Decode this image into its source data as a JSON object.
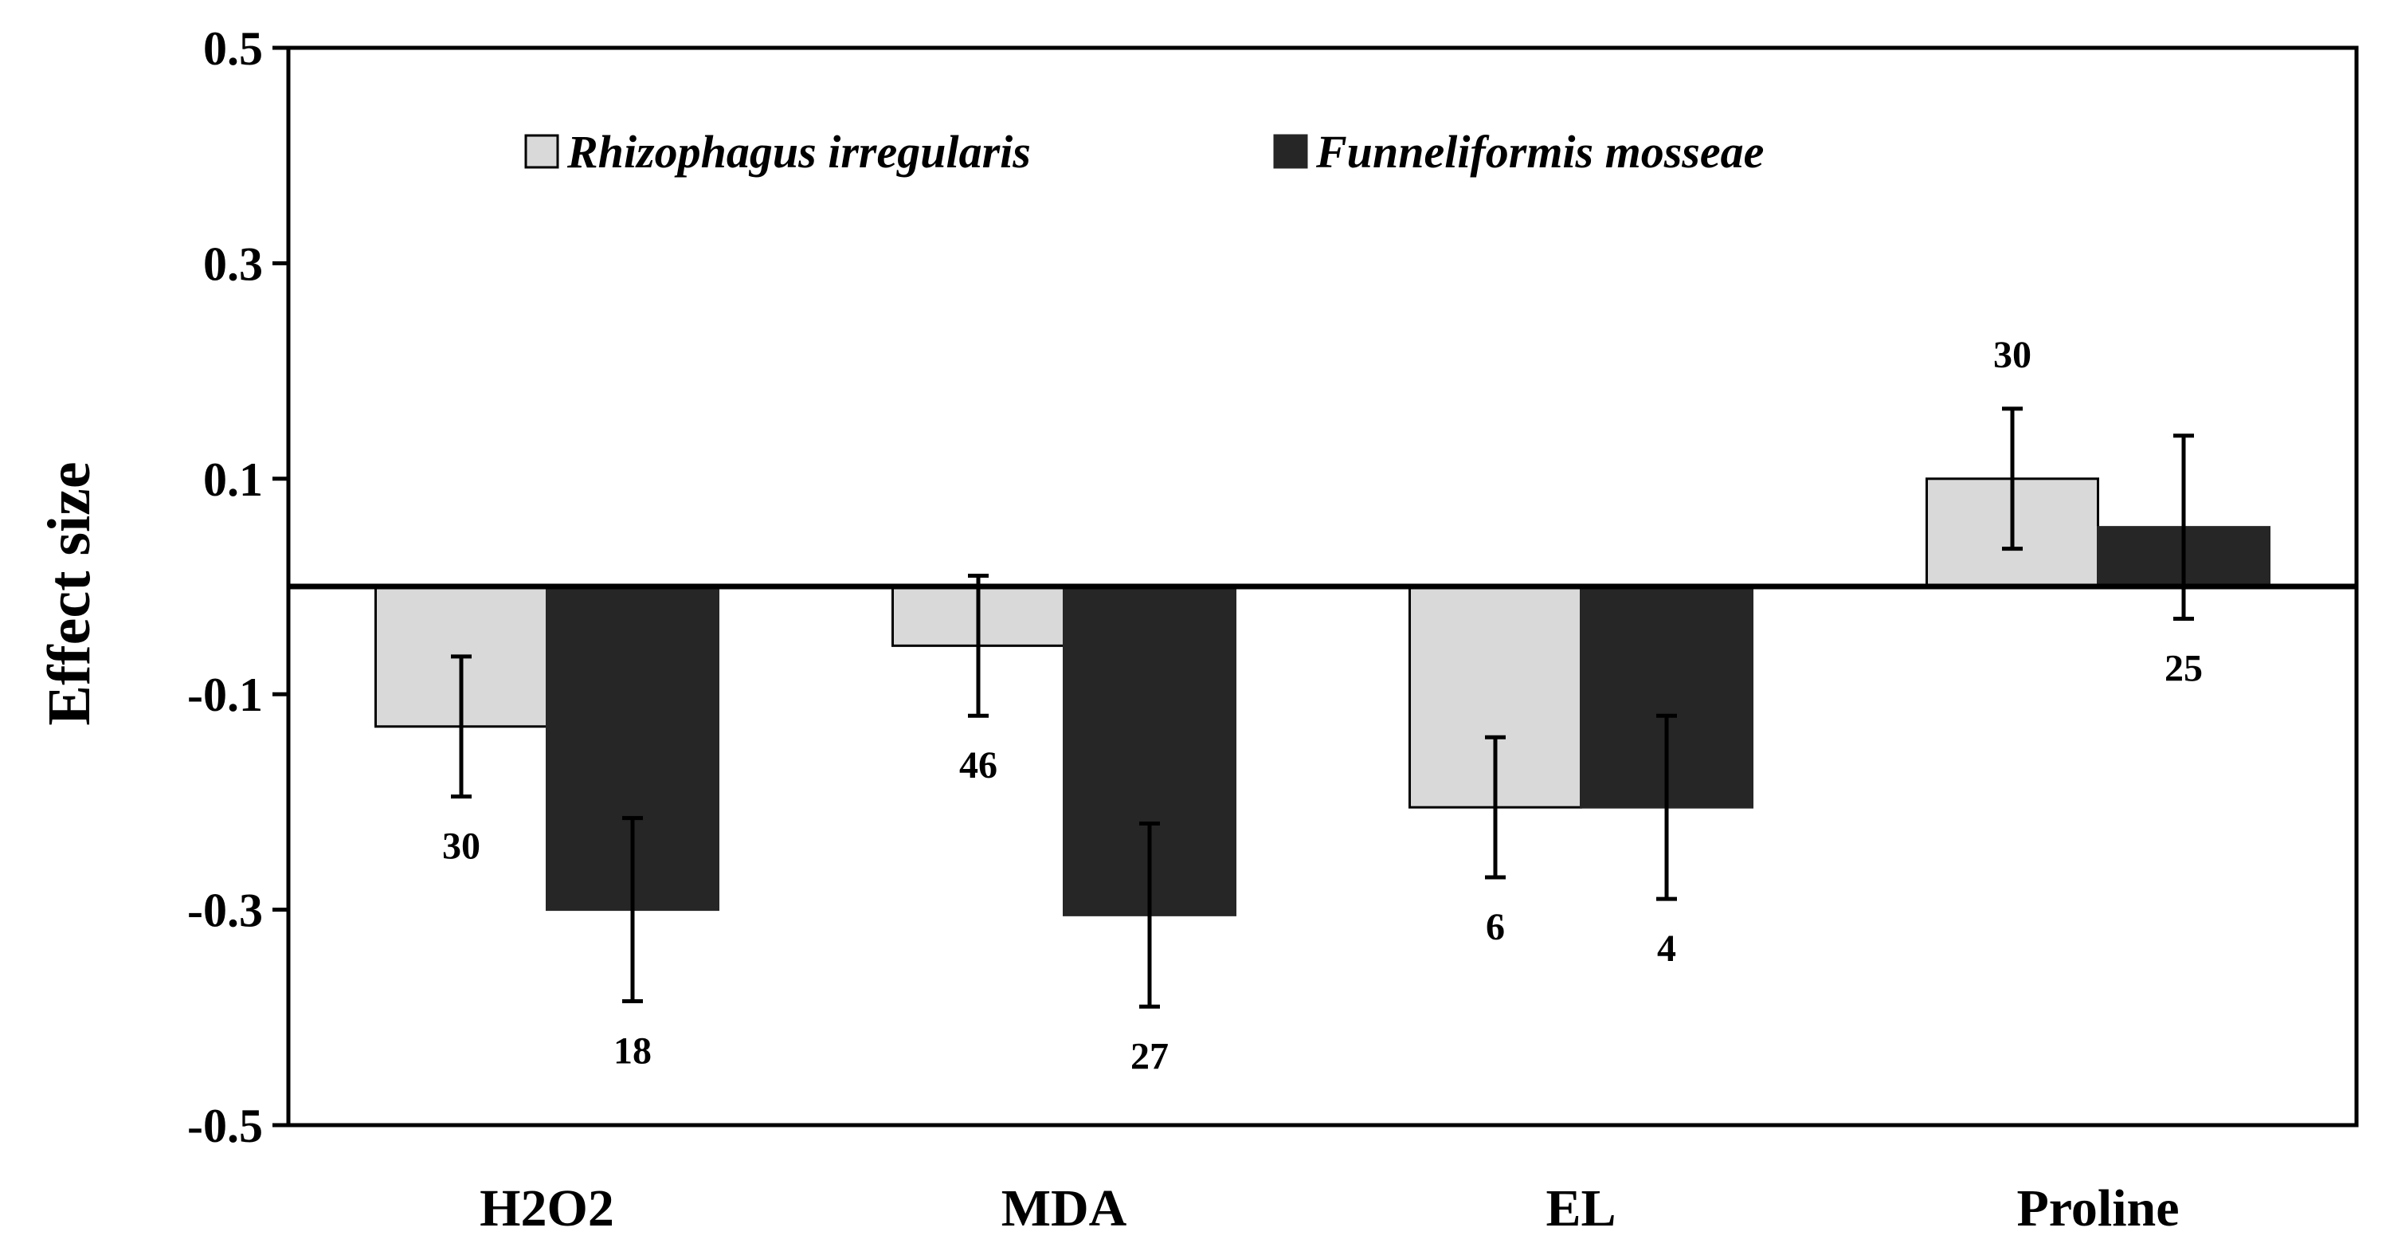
{
  "chart_data": {
    "type": "bar",
    "title": "",
    "xlabel": "",
    "ylabel": "Effect size",
    "ylim": [
      -0.5,
      0.5
    ],
    "yticks": [
      "0.5",
      "0.3",
      "0.1",
      "-0.1",
      "-0.3",
      "-0.5"
    ],
    "ytick_values": [
      0.5,
      0.3,
      0.1,
      -0.1,
      -0.3,
      -0.5
    ],
    "categories": [
      "H2O2",
      "MDA",
      "EL",
      "Proline"
    ],
    "series": [
      {
        "name": "Rhizophagus irregularis",
        "color": "#d9d9d9",
        "values": [
          -0.13,
          -0.055,
          -0.205,
          0.1
        ],
        "error": [
          0.065,
          0.065,
          0.065,
          0.065
        ],
        "n": [
          "30",
          "46",
          "6",
          "30"
        ]
      },
      {
        "name": "Funneliformis mosseae",
        "color": "#262626",
        "values": [
          -0.3,
          -0.305,
          -0.205,
          0.055
        ],
        "error": [
          0.085,
          0.085,
          0.085,
          0.085
        ],
        "n": [
          "18",
          "27",
          "4",
          "25"
        ]
      }
    ],
    "grid": false,
    "legend_position": "top-left, inside plot"
  }
}
